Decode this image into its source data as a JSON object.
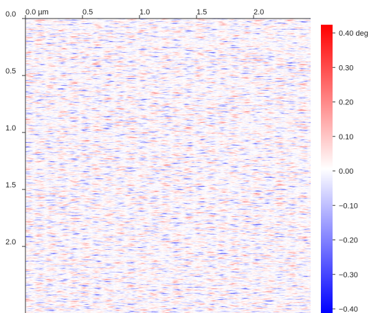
{
  "chart_data": {
    "type": "image",
    "xlim": [
      0,
      2.5
    ],
    "ylim": [
      0,
      2.5
    ],
    "xticks": [
      {
        "value": 0,
        "label": "0.0 µm"
      },
      0.5,
      {
        "value": 1,
        "label": "1.0"
      },
      1.5,
      {
        "value": 2,
        "label": "2.0"
      }
    ],
    "yticks": [
      {
        "value": 0,
        "label": "0.0"
      },
      0.5,
      {
        "value": 1,
        "label": "1.0"
      },
      1.5,
      {
        "value": 2,
        "label": "2.0"
      }
    ],
    "colorbar": {
      "lim": [
        -0.4,
        0.4
      ],
      "colors": [
        "#0000ff",
        "#ffffff",
        "#ff0000"
      ],
      "ticks": [
        {
          "value": 0.4,
          "label": "0.40 deg"
        },
        {
          "value": 0.3,
          "label": "0.30"
        },
        {
          "value": 0.2,
          "label": "0.20"
        },
        {
          "value": 0.1,
          "label": "0.10"
        },
        {
          "value": 0,
          "label": "0.00"
        },
        {
          "value": -0.1,
          "label": "−0.10"
        },
        {
          "value": -0.2,
          "label": "−0.20"
        },
        {
          "value": -0.3,
          "label": "−0.30"
        },
        {
          "value": -0.4,
          "label": "−0.40"
        }
      ]
    }
  }
}
